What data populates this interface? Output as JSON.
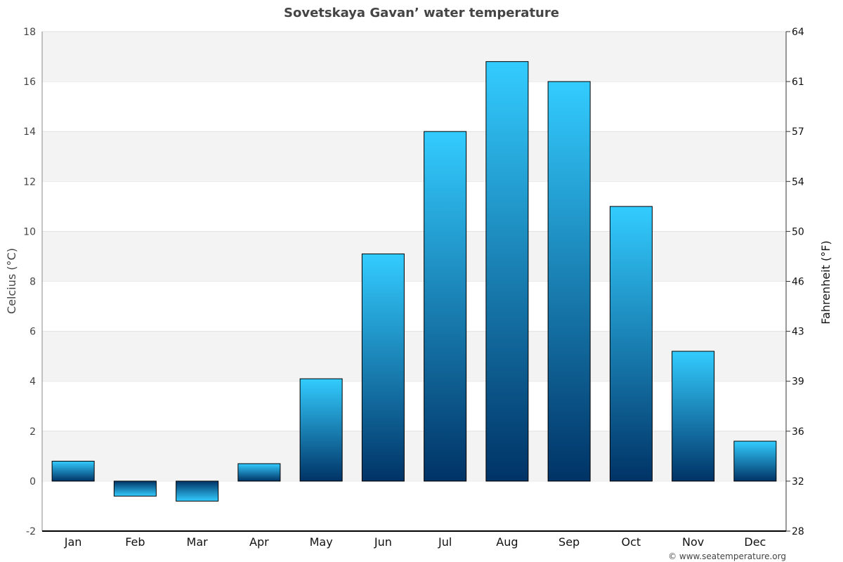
{
  "chart_data": {
    "type": "bar",
    "title": "Sovetskaya Gavan’ water temperature",
    "ylabel": "Celcius (°C)",
    "y2label": "Fahrenheit (°F)",
    "categories": [
      "Jan",
      "Feb",
      "Mar",
      "Apr",
      "May",
      "Jun",
      "Jul",
      "Aug",
      "Sep",
      "Oct",
      "Nov",
      "Dec"
    ],
    "values": [
      0.8,
      -0.6,
      -0.8,
      0.7,
      4.1,
      9.1,
      14.0,
      16.8,
      16.0,
      11.0,
      5.2,
      1.6
    ],
    "ylim": [
      -2,
      18
    ],
    "yticks": [
      -2,
      0,
      2,
      4,
      6,
      8,
      10,
      12,
      14,
      16,
      18
    ],
    "y2ticks": [
      "28",
      "32",
      "36",
      "39",
      "43",
      "46",
      "50",
      "54",
      "57",
      "61",
      "64"
    ],
    "grid": true,
    "colors": {
      "bar_top": "#33ccff",
      "bar_bottom": "#003366",
      "band": "#f3f3f3"
    },
    "credit": "© www.seatemperature.org"
  }
}
